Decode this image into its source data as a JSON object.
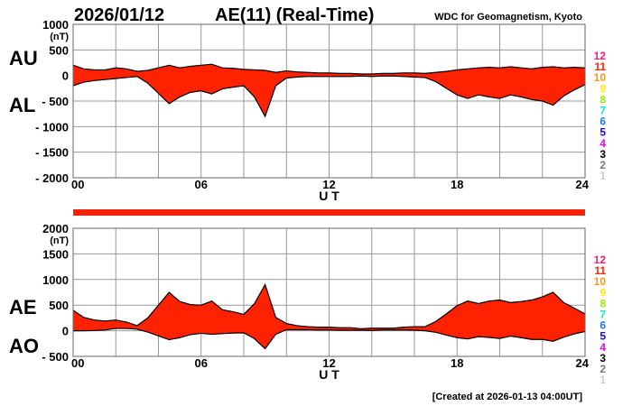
{
  "header": {
    "date": "2026/01/12",
    "title": "AE(11) (Real-Time)",
    "source": "WDC for Geomagnetism, Kyoto"
  },
  "footer": "[Created at 2026-01-13 04:00UT]",
  "colors": {
    "fill": "#ff2200",
    "line": "#000000",
    "grid": "#999999",
    "bar": "#ff2200"
  },
  "legend": [
    {
      "label": "12",
      "color": "#ff1a75"
    },
    {
      "label": "11",
      "color": "#ff2200"
    },
    {
      "label": "10",
      "color": "#ff9900"
    },
    {
      "label": "9",
      "color": "#ffee00"
    },
    {
      "label": "8",
      "color": "#99ee00"
    },
    {
      "label": "7",
      "color": "#00eedd"
    },
    {
      "label": "6",
      "color": "#1a7fff"
    },
    {
      "label": "5",
      "color": "#2200ee"
    },
    {
      "label": "4",
      "color": "#ee00ee"
    },
    {
      "label": "3",
      "color": "#000000"
    },
    {
      "label": "2",
      "color": "#777777"
    },
    {
      "label": "1",
      "color": "#cccccc"
    }
  ],
  "chart_data": [
    {
      "type": "area",
      "labels_left": [
        "AU",
        "AL"
      ],
      "ylabel": "(nT)",
      "xlabel": "U T",
      "ylim": [
        -2000,
        1000
      ],
      "yticks": [
        "1000",
        "500",
        "0",
        "- 500",
        "- 1000",
        "- 1500",
        "- 2000"
      ],
      "ytick_values": [
        1000,
        500,
        0,
        -500,
        -1000,
        -1500,
        -2000
      ],
      "xlim": [
        0,
        24
      ],
      "xticks": [
        "00",
        "06",
        "12",
        "18",
        "24"
      ],
      "grid": true,
      "x": [
        0,
        0.5,
        1,
        1.5,
        2,
        2.5,
        3,
        3.5,
        4,
        4.5,
        5,
        5.5,
        6,
        6.5,
        7,
        7.5,
        8,
        8.5,
        9,
        9.5,
        10,
        10.5,
        11,
        11.5,
        12,
        12.5,
        13,
        13.5,
        14,
        14.5,
        15,
        15.5,
        16,
        16.5,
        17,
        17.5,
        18,
        18.5,
        19,
        19.5,
        20,
        20.5,
        21,
        21.5,
        22,
        22.5,
        23,
        23.5,
        24
      ],
      "series": [
        {
          "name": "AU",
          "values": [
            200,
            130,
            110,
            110,
            150,
            130,
            80,
            100,
            150,
            200,
            150,
            180,
            200,
            220,
            150,
            140,
            120,
            110,
            100,
            60,
            90,
            70,
            60,
            50,
            50,
            40,
            40,
            30,
            30,
            40,
            40,
            50,
            50,
            40,
            60,
            80,
            110,
            130,
            150,
            160,
            150,
            170,
            150,
            130,
            160,
            170,
            150,
            160,
            150
          ]
        },
        {
          "name": "AL",
          "values": [
            -200,
            -130,
            -100,
            -80,
            -60,
            -40,
            -20,
            -150,
            -350,
            -550,
            -420,
            -330,
            -300,
            -360,
            -260,
            -230,
            -200,
            -420,
            -800,
            -200,
            -50,
            -30,
            -20,
            -20,
            -20,
            -20,
            -20,
            -10,
            -20,
            -10,
            -10,
            -20,
            -30,
            -40,
            -120,
            -250,
            -380,
            -450,
            -380,
            -420,
            -450,
            -380,
            -420,
            -470,
            -500,
            -580,
            -400,
            -280,
            -180
          ]
        }
      ]
    },
    {
      "type": "area",
      "labels_left": [
        "AE",
        "AO"
      ],
      "ylabel": "(nT)",
      "xlabel": "U T",
      "ylim": [
        -500,
        2000
      ],
      "yticks": [
        "2000",
        "1500",
        "1000",
        "500",
        "0",
        "- 500"
      ],
      "ytick_values": [
        2000,
        1500,
        1000,
        500,
        0,
        -500
      ],
      "xlim": [
        0,
        24
      ],
      "xticks": [
        "00",
        "06",
        "12",
        "18",
        "24"
      ],
      "grid": true
    }
  ]
}
